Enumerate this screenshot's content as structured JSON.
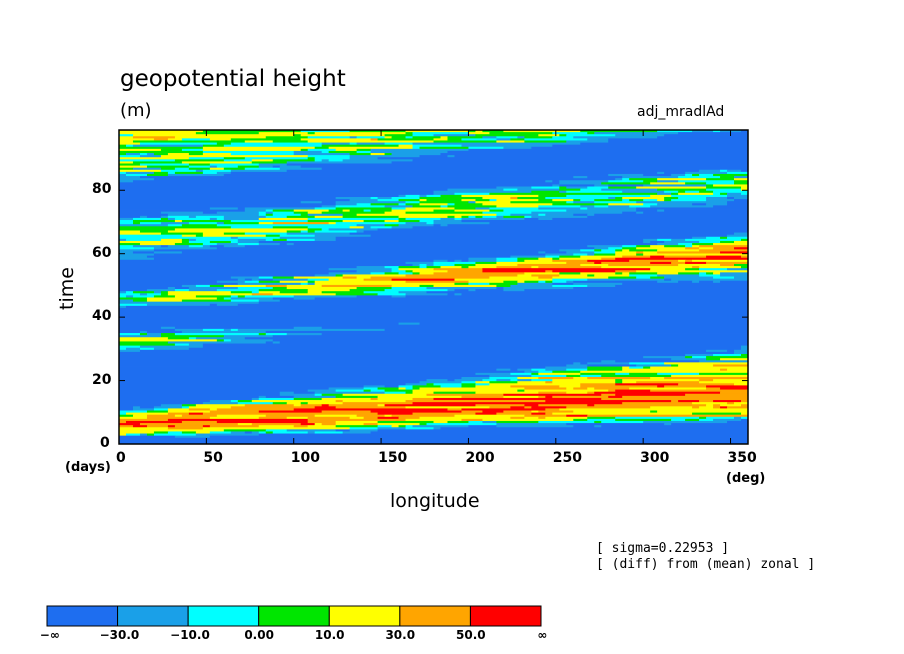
{
  "header": {
    "title": "geopotential height",
    "units": "(m)",
    "run_name": "adj_mradlAd"
  },
  "notes": {
    "line1": "[ sigma=0.22953 ]",
    "line2": "[ (diff) from (mean) zonal ]"
  },
  "chart_data": {
    "type": "heatmap",
    "xlabel": "longitude",
    "ylabel": "time",
    "x_unit": "(deg)",
    "y_unit": "(days)",
    "xlim": [
      0,
      360
    ],
    "ylim": [
      0,
      99
    ],
    "x_ticks": [
      0,
      50,
      100,
      150,
      200,
      250,
      300,
      350
    ],
    "y_ticks": [
      0,
      20,
      40,
      60,
      80
    ],
    "levels": [
      {
        "label": "−∞",
        "color": "#1e6ef0"
      },
      {
        "label": "−30.0",
        "color": "#1aa0e8"
      },
      {
        "label": "−10.0",
        "color": "#00ffff"
      },
      {
        "label": "0.00",
        "color": "#00e600"
      },
      {
        "label": "10.0",
        "color": "#ffff00"
      },
      {
        "label": "30.0",
        "color": "#ffa500"
      },
      {
        "label": "50.0",
        "color": "#ff0000"
      },
      {
        "label": "∞",
        "color": ""
      }
    ],
    "negative_bands": [
      {
        "t0": 0,
        "t1": 3,
        "slope": 0.011,
        "width": 3.5
      },
      {
        "t0": 22,
        "t1": 28,
        "slope": 0.055,
        "width": 5
      },
      {
        "t0": 28,
        "t1": 38,
        "slope": 0.05,
        "width": 5
      },
      {
        "t0": 40,
        "t1": 45,
        "slope": 0.02,
        "width": 6
      },
      {
        "t0": 54,
        "t1": 70,
        "slope": 0.05,
        "width": 6
      },
      {
        "t0": 78,
        "t1": 92,
        "slope": 0.045,
        "width": 6
      }
    ],
    "positive_bands": [
      {
        "t0": 48,
        "t1": 58,
        "slope": 0.05,
        "width": 5
      },
      {
        "t0": 8,
        "t1": 14,
        "slope": 0.03,
        "width": 5
      },
      {
        "t0": 34,
        "t1": 40,
        "slope": 0.02,
        "width": 4
      }
    ]
  }
}
